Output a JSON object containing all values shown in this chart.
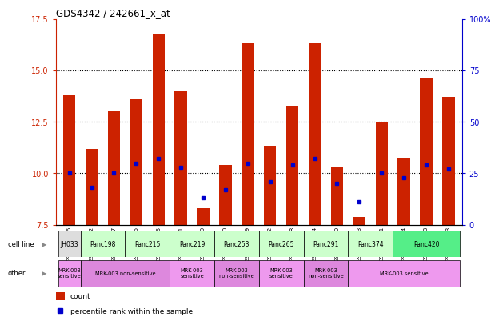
{
  "title": "GDS4342 / 242661_x_at",
  "samples": [
    "GSM924986",
    "GSM924992",
    "GSM924987",
    "GSM924995",
    "GSM924985",
    "GSM924991",
    "GSM924989",
    "GSM924990",
    "GSM924979",
    "GSM924982",
    "GSM924978",
    "GSM924994",
    "GSM924980",
    "GSM924983",
    "GSM924981",
    "GSM924984",
    "GSM924988",
    "GSM924993"
  ],
  "bar_heights": [
    13.8,
    11.2,
    13.0,
    13.6,
    16.8,
    14.0,
    8.3,
    10.4,
    16.3,
    11.3,
    13.3,
    16.3,
    10.3,
    7.9,
    12.5,
    10.7,
    14.6,
    13.7
  ],
  "blue_y": [
    10.0,
    9.3,
    10.0,
    10.5,
    10.7,
    10.3,
    8.8,
    9.2,
    10.5,
    9.6,
    10.4,
    10.7,
    9.5,
    8.6,
    10.0,
    9.8,
    10.4,
    10.2
  ],
  "bar_color": "#cc2200",
  "blue_color": "#0000cc",
  "ymin": 7.5,
  "ymax": 17.5,
  "yticks_left": [
    7.5,
    10.0,
    12.5,
    15.0,
    17.5
  ],
  "yticks_right_pct": [
    0,
    25,
    50,
    75,
    100
  ],
  "yright_labels": [
    "0",
    "25",
    "50",
    "75",
    "100%"
  ],
  "cell_line_map": [
    {
      "name": "JH033",
      "start": 0,
      "end": 1,
      "color": "#dddddd"
    },
    {
      "name": "Panc198",
      "start": 1,
      "end": 3,
      "color": "#ccffcc"
    },
    {
      "name": "Panc215",
      "start": 3,
      "end": 5,
      "color": "#ccffcc"
    },
    {
      "name": "Panc219",
      "start": 5,
      "end": 7,
      "color": "#ccffcc"
    },
    {
      "name": "Panc253",
      "start": 7,
      "end": 9,
      "color": "#ccffcc"
    },
    {
      "name": "Panc265",
      "start": 9,
      "end": 11,
      "color": "#ccffcc"
    },
    {
      "name": "Panc291",
      "start": 11,
      "end": 13,
      "color": "#ccffcc"
    },
    {
      "name": "Panc374",
      "start": 13,
      "end": 15,
      "color": "#ccffcc"
    },
    {
      "name": "Panc420",
      "start": 15,
      "end": 18,
      "color": "#55ee88"
    }
  ],
  "other_map": [
    {
      "label": "MRK-003\nsensitive",
      "start": 0,
      "end": 1,
      "color": "#ee99ee"
    },
    {
      "label": "MRK-003 non-sensitive",
      "start": 1,
      "end": 5,
      "color": "#dd88dd"
    },
    {
      "label": "MRK-003\nsensitive",
      "start": 5,
      "end": 7,
      "color": "#ee99ee"
    },
    {
      "label": "MRK-003\nnon-sensitive",
      "start": 7,
      "end": 9,
      "color": "#dd88dd"
    },
    {
      "label": "MRK-003\nsensitive",
      "start": 9,
      "end": 11,
      "color": "#ee99ee"
    },
    {
      "label": "MRK-003\nnon-sensitive",
      "start": 11,
      "end": 13,
      "color": "#dd88dd"
    },
    {
      "label": "MRK-003 sensitive",
      "start": 13,
      "end": 18,
      "color": "#ee99ee"
    }
  ],
  "cell_line_label": "cell line",
  "other_label": "other",
  "legend_count_color": "#cc2200",
  "legend_blue_color": "#0000cc",
  "bg_color": "#ffffff"
}
